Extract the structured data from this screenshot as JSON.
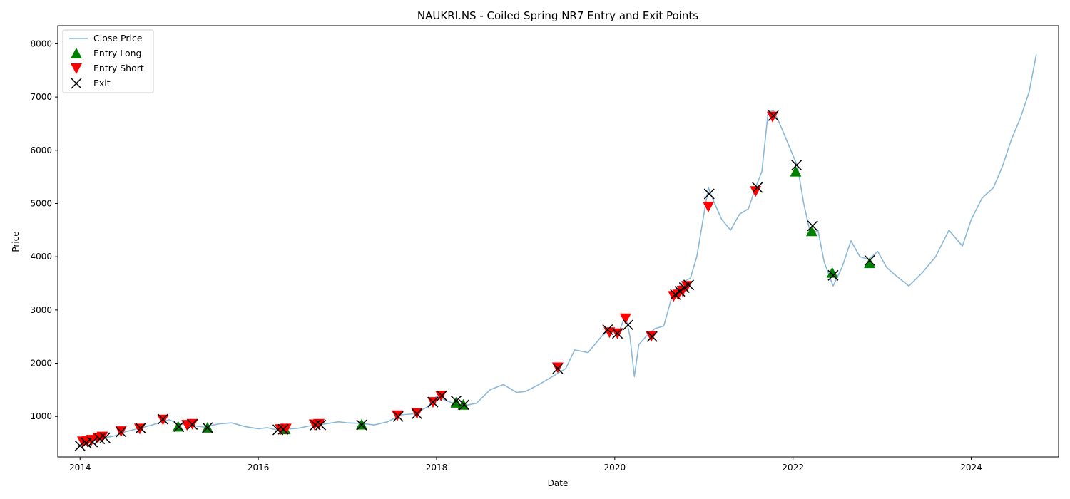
{
  "chart_data": {
    "type": "line",
    "title": "NAUKRI.NS - Coiled Spring NR7 Entry and Exit Points",
    "xlabel": "Date",
    "ylabel": "Price",
    "xlim": [
      2013.75,
      2024.98
    ],
    "ylim": [
      240,
      8340
    ],
    "x_ticks": [
      2014,
      2016,
      2018,
      2020,
      2022,
      2024
    ],
    "y_ticks": [
      1000,
      2000,
      3000,
      4000,
      5000,
      6000,
      7000,
      8000
    ],
    "grid": false,
    "legend_position": "top-left",
    "colors": {
      "close": "#8ab8d8",
      "long": "#008000",
      "short": "#ff0000",
      "exit": "#000000"
    },
    "series": [
      {
        "name": "Close Price",
        "kind": "line",
        "x": [
          2014.0,
          2014.1,
          2014.25,
          2014.4,
          2014.5,
          2014.7,
          2014.85,
          2015.0,
          2015.1,
          2015.25,
          2015.4,
          2015.55,
          2015.7,
          2015.85,
          2016.0,
          2016.1,
          2016.2,
          2016.3,
          2016.45,
          2016.6,
          2016.75,
          2016.9,
          2017.0,
          2017.15,
          2017.3,
          2017.45,
          2017.6,
          2017.75,
          2017.9,
          2018.0,
          2018.15,
          2018.3,
          2018.45,
          2018.6,
          2018.75,
          2018.9,
          2019.0,
          2019.15,
          2019.3,
          2019.45,
          2019.55,
          2019.7,
          2019.85,
          2019.95,
          2020.05,
          2020.12,
          2020.17,
          2020.22,
          2020.27,
          2020.35,
          2020.45,
          2020.55,
          2020.65,
          2020.75,
          2020.85,
          2020.92,
          2021.0,
          2021.05,
          2021.12,
          2021.2,
          2021.3,
          2021.4,
          2021.5,
          2021.58,
          2021.65,
          2021.72,
          2021.78,
          2021.85,
          2021.95,
          2022.05,
          2022.12,
          2022.2,
          2022.28,
          2022.35,
          2022.45,
          2022.55,
          2022.65,
          2022.75,
          2022.85,
          2022.95,
          2023.05,
          2023.15,
          2023.3,
          2023.45,
          2023.6,
          2023.75,
          2023.9,
          2024.0,
          2024.12,
          2024.25,
          2024.35,
          2024.45,
          2024.55,
          2024.65,
          2024.73
        ],
        "y": [
          470,
          520,
          590,
          640,
          710,
          790,
          860,
          940,
          860,
          830,
          800,
          860,
          880,
          810,
          770,
          790,
          750,
          760,
          780,
          830,
          860,
          900,
          880,
          870,
          840,
          900,
          1030,
          1050,
          1180,
          1380,
          1270,
          1200,
          1250,
          1500,
          1600,
          1450,
          1470,
          1600,
          1750,
          1900,
          2250,
          2200,
          2500,
          2650,
          2600,
          2900,
          2500,
          1750,
          2350,
          2500,
          2650,
          2700,
          3300,
          3500,
          3600,
          4000,
          4800,
          5300,
          5000,
          4700,
          4500,
          4800,
          4900,
          5300,
          5600,
          6700,
          6750,
          6500,
          6100,
          5700,
          5000,
          4400,
          4500,
          3900,
          3450,
          3800,
          4300,
          4000,
          3950,
          4100,
          3800,
          3650,
          3450,
          3700,
          4000,
          4500,
          4200,
          4700,
          5100,
          5300,
          5700,
          6200,
          6600,
          7100,
          7800
        ]
      },
      {
        "name": "Entry Long",
        "kind": "marker",
        "marker": "triangle-up",
        "x": [
          2015.1,
          2015.43,
          2016.3,
          2017.16,
          2018.22,
          2018.3,
          2022.03,
          2022.21,
          2022.44,
          2022.86
        ],
        "y": [
          810,
          790,
          760,
          850,
          1260,
          1220,
          5600,
          4480,
          3700,
          3880
        ]
      },
      {
        "name": "Entry Short",
        "kind": "marker",
        "marker": "triangle-down",
        "x": [
          2014.03,
          2014.08,
          2014.13,
          2014.2,
          2014.25,
          2014.46,
          2014.67,
          2014.93,
          2015.2,
          2015.26,
          2016.25,
          2016.31,
          2016.63,
          2016.68,
          2017.56,
          2017.78,
          2017.96,
          2018.05,
          2019.36,
          2019.94,
          2020.03,
          2020.12,
          2020.41,
          2020.66,
          2020.71,
          2020.76,
          2020.81,
          2021.05,
          2021.58,
          2021.77
        ],
        "y": [
          530,
          540,
          560,
          600,
          620,
          720,
          770,
          940,
          840,
          860,
          760,
          770,
          850,
          860,
          1020,
          1060,
          1270,
          1390,
          1920,
          2580,
          2560,
          2840,
          2510,
          3260,
          3290,
          3360,
          3450,
          4940,
          5230,
          6630
        ]
      },
      {
        "name": "Exit",
        "kind": "marker",
        "marker": "x",
        "x": [
          2014.0,
          2014.07,
          2014.14,
          2014.22,
          2014.28,
          2014.46,
          2014.68,
          2014.93,
          2015.11,
          2015.26,
          2015.43,
          2016.22,
          2016.28,
          2016.64,
          2016.7,
          2017.16,
          2017.57,
          2017.78,
          2017.96,
          2018.06,
          2018.22,
          2018.31,
          2019.36,
          2019.92,
          2020.03,
          2020.15,
          2020.42,
          2020.68,
          2020.73,
          2020.78,
          2020.83,
          2021.06,
          2021.6,
          2021.78,
          2022.04,
          2022.22,
          2022.45,
          2022.86
        ],
        "y": [
          450,
          500,
          520,
          580,
          600,
          710,
          780,
          950,
          810,
          850,
          790,
          750,
          760,
          840,
          840,
          840,
          1000,
          1050,
          1270,
          1390,
          1290,
          1220,
          1900,
          2630,
          2560,
          2720,
          2500,
          3290,
          3350,
          3420,
          3470,
          5180,
          5300,
          6650,
          5720,
          4580,
          3650,
          3930
        ]
      }
    ]
  }
}
